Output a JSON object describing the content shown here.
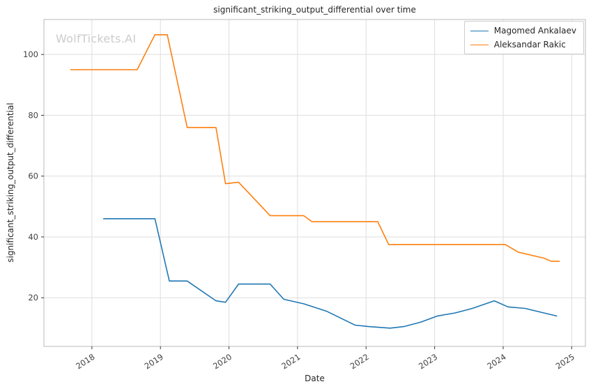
{
  "chart_data": {
    "type": "line",
    "title": "significant_striking_output_differential over time",
    "xlabel": "Date",
    "ylabel": "significant_striking_output_differential",
    "watermark": "WolfTickets.AI",
    "grid": true,
    "legend_position": "upper right",
    "xlim": [
      2017.3,
      2025.2
    ],
    "ylim": [
      4,
      111.5
    ],
    "xticks": [
      2018,
      2019,
      2020,
      2021,
      2022,
      2023,
      2024,
      2025
    ],
    "xtick_labels": [
      "2018",
      "2019",
      "2020",
      "2021",
      "2022",
      "2023",
      "2024",
      "2025"
    ],
    "yticks": [
      20,
      40,
      60,
      80,
      100
    ],
    "ytick_labels": [
      "20",
      "40",
      "60",
      "80",
      "100"
    ],
    "series": [
      {
        "name": "Magomed Ankalaev",
        "color": "#1f77b4",
        "points": [
          [
            2018.17,
            46
          ],
          [
            2018.92,
            46
          ],
          [
            2019.13,
            25.5
          ],
          [
            2019.39,
            25.5
          ],
          [
            2019.81,
            19
          ],
          [
            2019.95,
            18.5
          ],
          [
            2020.14,
            24.5
          ],
          [
            2020.6,
            24.5
          ],
          [
            2020.8,
            19.5
          ],
          [
            2021.09,
            18
          ],
          [
            2021.43,
            15.5
          ],
          [
            2021.84,
            11
          ],
          [
            2022.04,
            10.5
          ],
          [
            2022.35,
            10
          ],
          [
            2022.55,
            10.5
          ],
          [
            2022.8,
            12
          ],
          [
            2023.04,
            14
          ],
          [
            2023.3,
            15
          ],
          [
            2023.55,
            16.5
          ],
          [
            2023.87,
            19
          ],
          [
            2024.07,
            17
          ],
          [
            2024.32,
            16.5
          ],
          [
            2024.78,
            14
          ]
        ]
      },
      {
        "name": "Aleksandar Rakic",
        "color": "#ff7f0e",
        "points": [
          [
            2017.69,
            95
          ],
          [
            2018.66,
            95
          ],
          [
            2018.92,
            106.5
          ],
          [
            2019.1,
            106.5
          ],
          [
            2019.39,
            76
          ],
          [
            2019.81,
            76
          ],
          [
            2019.95,
            57.5
          ],
          [
            2020.14,
            58
          ],
          [
            2020.6,
            47
          ],
          [
            2021.09,
            47
          ],
          [
            2021.21,
            45
          ],
          [
            2022.17,
            45
          ],
          [
            2022.33,
            37.5
          ],
          [
            2024.03,
            37.5
          ],
          [
            2024.22,
            35
          ],
          [
            2024.6,
            33
          ],
          [
            2024.7,
            32
          ],
          [
            2024.82,
            32
          ]
        ]
      }
    ],
    "style": {
      "grid_color": "#dddddd",
      "spine_color": "#b8b8b8",
      "tick_color": "#333333",
      "tick_label_color": "#404040"
    }
  }
}
